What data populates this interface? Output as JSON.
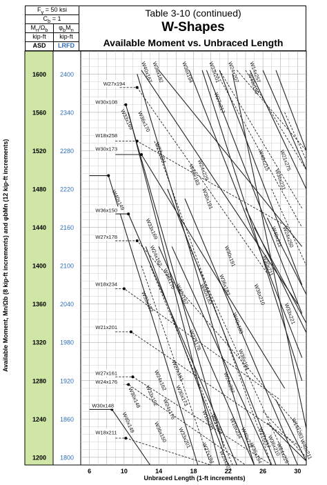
{
  "header": {
    "fy": "F<sub>y</sub> = 50 ksi",
    "cb": "C<sub>b</sub> = 1",
    "asd_sym": "M<sub>n</sub>/Ω<sub>b</sub>",
    "lrfd_sym": "φ<sub>b</sub>M<sub>n</sub>",
    "asd_unit": "kip-ft",
    "lrfd_unit": "kip-ft",
    "asd_label": "ASD",
    "lrfd_label": "LRFD",
    "title_line1": "Table 3-10 (continued)",
    "title_line2": "W-Shapes",
    "title_line3": "Available Moment vs. Unbraced Length"
  },
  "chart_data": {
    "type": "line",
    "xlabel": "Unbraced Length (1-ft increments)",
    "ylabel": "Available Moment, Mn/Ωb (8 kip-ft increments) and φbMn (12 kip-ft increments)",
    "xlim": [
      5,
      31
    ],
    "ylim_asd": [
      1192,
      1624
    ],
    "ylim_lrfd": [
      1788,
      2436
    ],
    "x_ticks": [
      6,
      10,
      14,
      18,
      22,
      26,
      30
    ],
    "asd_ticks": [
      1600,
      1560,
      1520,
      1480,
      1440,
      1400,
      1360,
      1320,
      1280,
      1240,
      1200
    ],
    "lrfd_ticks": [
      2400,
      2340,
      2280,
      2220,
      2160,
      2100,
      2040,
      1980,
      1920,
      1860,
      1800
    ],
    "grid": true,
    "colors": {
      "asd_band": "#cfe6a6",
      "lrfd_text": "#2e6fb5",
      "line": "#222222"
    },
    "shapes": [
      {
        "name": "W27x194",
        "style": "dashed",
        "x": [
          9.5,
          11.5,
          26.5
        ],
        "y": [
          1586,
          1586,
          1392
        ]
      },
      {
        "name": "W30x108",
        "style": "solid",
        "x": [
          9.0,
          10.2,
          21.5
        ],
        "y": [
          1568,
          1568,
          1210
        ]
      },
      {
        "name": "W18x258",
        "style": "dashed",
        "x": [
          9.0,
          11.5,
          29.0
        ],
        "y": [
          1530,
          1530,
          1440
        ]
      },
      {
        "name": "W30x173",
        "style": "solid",
        "x": [
          9.0,
          12.0,
          28.5
        ],
        "y": [
          1516,
          1516,
          1272
        ]
      },
      {
        "name": "W40x149",
        "style": "solid",
        "x": [
          6.0,
          8.2,
          18.5
        ],
        "y": [
          1494,
          1494,
          1192
        ]
      },
      {
        "name": "W36x150",
        "style": "solid",
        "x": [
          9.0,
          10.5,
          23.0
        ],
        "y": [
          1454,
          1454,
          1192
        ]
      },
      {
        "name": "W27x178",
        "style": "dashed",
        "x": [
          9.0,
          11.5,
          30.5
        ],
        "y": [
          1426,
          1426,
          1228
        ]
      },
      {
        "name": "W18x234",
        "style": "dashed",
        "x": [
          9.0,
          10.0,
          28.0
        ],
        "y": [
          1376,
          1376,
          1260
        ]
      },
      {
        "name": "W21x201",
        "style": "dashed",
        "x": [
          9.0,
          10.8,
          30.5
        ],
        "y": [
          1331,
          1331,
          1210
        ]
      },
      {
        "name": "W27x161",
        "style": "dashed",
        "x": [
          9.0,
          11.0,
          27.0
        ],
        "y": [
          1284,
          1284,
          1192
        ]
      },
      {
        "name": "W24x176",
        "style": "dashed",
        "x": [
          9.0,
          10.5,
          24.0
        ],
        "y": [
          1276,
          1276,
          1192
        ]
      },
      {
        "name": "W30x148",
        "style": "solid",
        "x": [
          6.0,
          8.6,
          13.0
        ],
        "y": [
          1250,
          1250,
          1192
        ]
      },
      {
        "name": "W18x211",
        "style": "dashed",
        "x": [
          9.0,
          10.2,
          20.0
        ],
        "y": [
          1220,
          1220,
          1192
        ]
      },
      {
        "name": "W40x167",
        "style": "solid",
        "x": [
          12.0,
          30.0
        ],
        "y": [
          1604,
          1360
        ]
      },
      {
        "name": "W36x182",
        "style": "solid",
        "x": [
          14.0,
          30.5
        ],
        "y": [
          1604,
          1420
        ]
      },
      {
        "name": "W33x169",
        "style": "solid",
        "x": [
          10.5,
          21.0
        ],
        "y": [
          1560,
          1192
        ]
      },
      {
        "name": "W36x170",
        "style": "solid",
        "x": [
          11.5,
          25.0
        ],
        "y": [
          1600,
          1192
        ]
      },
      {
        "name": "W27x194",
        "style": "dashed",
        "x": [
          13.5,
          27.0
        ],
        "y": [
          1530,
          1192
        ]
      },
      {
        "name": "W40x183",
        "style": "solid",
        "x": [
          19.0,
          30.5
        ],
        "y": [
          1604,
          1280
        ]
      },
      {
        "name": "W36x194",
        "style": "solid",
        "x": [
          17.5,
          30.5
        ],
        "y": [
          1604,
          1304
        ]
      },
      {
        "name": "W30x191",
        "style": "solid",
        "x": [
          21.0,
          30.5
        ],
        "y": [
          1604,
          1380
        ]
      },
      {
        "name": "W33x201",
        "style": "solid",
        "x": [
          19.5,
          30.5
        ],
        "y": [
          1604,
          1350
        ]
      },
      {
        "name": "W24x229",
        "style": "dashed",
        "x": [
          21.0,
          30.5
        ],
        "y": [
          1604,
          1460
        ]
      },
      {
        "name": "W27x217",
        "style": "dashed",
        "x": [
          20.5,
          30.5
        ],
        "y": [
          1604,
          1440
        ]
      },
      {
        "name": "W14x257",
        "style": "dashed",
        "x": [
          24.0,
          31.0
        ],
        "y": [
          1604,
          1500
        ]
      },
      {
        "name": "W40x199",
        "style": "solid",
        "x": [
          24.5,
          31.0
        ],
        "y": [
          1604,
          1480
        ]
      },
      {
        "name": "W40x215",
        "style": "solid",
        "x": [
          26.0,
          31.0
        ],
        "y": [
          1604,
          1500
        ]
      },
      {
        "name": "W36x231",
        "style": "solid",
        "x": [
          27.5,
          31.0
        ],
        "y": [
          1604,
          1520
        ]
      },
      {
        "name": "W40x211",
        "style": "solid",
        "x": [
          26.5,
          31.0
        ],
        "y": [
          1450,
          1370
        ]
      },
      {
        "name": "W30x211",
        "style": "solid",
        "x": [
          25.0,
          31.0
        ],
        "y": [
          1440,
          1340
        ]
      },
      {
        "name": "W24x250",
        "style": "dashed",
        "x": [
          27.0,
          31.0
        ],
        "y": [
          1480,
          1400
        ]
      },
      {
        "name": "W21x275",
        "style": "dashed",
        "x": [
          28.5,
          31.0
        ],
        "y": [
          1560,
          1510
        ]
      },
      {
        "name": "W33x221",
        "style": "solid",
        "x": [
          27.5,
          31.0
        ],
        "y": [
          1260,
          1196
        ]
      },
      {
        "name": "W24x207",
        "style": "dashed",
        "x": [
          23.0,
          31.0
        ],
        "y": [
          1604,
          1520
        ]
      },
      {
        "name": "W36x210",
        "style": "solid",
        "x": [
          24.0,
          31.0
        ],
        "y": [
          1460,
          1330
        ]
      },
      {
        "name": "W40x183",
        "style": "solid",
        "x": [
          17.0,
          30.0
        ],
        "y": [
          1470,
          1192
        ]
      },
      {
        "name": "W24x207",
        "style": "dashed",
        "x": [
          17.5,
          29.0
        ],
        "y": [
          1420,
          1192
        ]
      },
      {
        "name": "W40x167",
        "style": "solid",
        "x": [
          15.0,
          27.5
        ],
        "y": [
          1480,
          1192
        ]
      },
      {
        "name": "W36x170",
        "style": "solid",
        "x": [
          15.5,
          27.0
        ],
        "y": [
          1420,
          1192
        ]
      },
      {
        "name": "W30x173",
        "style": "solid",
        "x": [
          14.0,
          25.0
        ],
        "y": [
          1420,
          1192
        ]
      },
      {
        "name": "W33x152",
        "style": "solid",
        "x": [
          12.5,
          22.0
        ],
        "y": [
          1420,
          1192
        ]
      },
      {
        "name": "W24x162",
        "style": "dashed",
        "x": [
          12.0,
          20.0
        ],
        "y": [
          1400,
          1192
        ]
      },
      {
        "name": "W27x178",
        "style": "dashed",
        "x": [
          13.0,
          22.5
        ],
        "y": [
          1400,
          1192
        ]
      },
      {
        "name": "W40x199",
        "style": "solid",
        "x": [
          22.5,
          31.0
        ],
        "y": [
          1600,
          1230
        ]
      },
      {
        "name": "W14x283",
        "style": "dashed",
        "x": [
          26.0,
          31.0
        ],
        "y": [
          1248,
          1200
        ]
      },
      {
        "name": "W40x211",
        "style": "solid",
        "x": [
          26.5,
          31.0
        ],
        "y": [
          1236,
          1196
        ]
      }
    ],
    "labels": [
      {
        "text": "W27x194",
        "x": 7.6,
        "y": 1588,
        "rot": 0
      },
      {
        "text": "W30x108",
        "x": 6.7,
        "y": 1569,
        "rot": 0
      },
      {
        "text": "W18x258",
        "x": 6.7,
        "y": 1534,
        "rot": 0
      },
      {
        "text": "W30x173",
        "x": 6.7,
        "y": 1520,
        "rot": 0
      },
      {
        "text": "W36x150",
        "x": 6.7,
        "y": 1456,
        "rot": 0
      },
      {
        "text": "W27x178",
        "x": 6.7,
        "y": 1428,
        "rot": 0
      },
      {
        "text": "W18x234",
        "x": 6.7,
        "y": 1379,
        "rot": 0
      },
      {
        "text": "W21x201",
        "x": 6.7,
        "y": 1334,
        "rot": 0
      },
      {
        "text": "W27x161",
        "x": 6.7,
        "y": 1286,
        "rot": 0
      },
      {
        "text": "W24x176",
        "x": 6.7,
        "y": 1277,
        "rot": 0
      },
      {
        "text": "W30x148",
        "x": 6.3,
        "y": 1252,
        "rot": 0
      },
      {
        "text": "W18x211",
        "x": 6.7,
        "y": 1224,
        "rot": 0
      },
      {
        "text": "W40x149",
        "x": 8.6,
        "y": 1478,
        "rot": 64
      },
      {
        "text": "W33x169",
        "x": 9.6,
        "y": 1562,
        "rot": 64
      },
      {
        "text": "W36x170",
        "x": 11.6,
        "y": 1560,
        "rot": 66
      },
      {
        "text": "W40x167",
        "x": 12.0,
        "y": 1612,
        "rot": 70
      },
      {
        "text": "W36x182",
        "x": 13.3,
        "y": 1612,
        "rot": 70
      },
      {
        "text": "W27x194",
        "x": 13.6,
        "y": 1528,
        "rot": 70
      },
      {
        "text": "W36x194",
        "x": 16.7,
        "y": 1612,
        "rot": 70
      },
      {
        "text": "W40x183",
        "x": 17.5,
        "y": 1505,
        "rot": 70
      },
      {
        "text": "W24x229",
        "x": 18.5,
        "y": 1510,
        "rot": 70
      },
      {
        "text": "W30x191",
        "x": 19.0,
        "y": 1480,
        "rot": 70
      },
      {
        "text": "W33x201",
        "x": 19.8,
        "y": 1612,
        "rot": 70
      },
      {
        "text": "W27x217",
        "x": 20.4,
        "y": 1580,
        "rot": 70
      },
      {
        "text": "W24x207",
        "x": 22.0,
        "y": 1612,
        "rot": 70
      },
      {
        "text": "W14x257",
        "x": 24.5,
        "y": 1612,
        "rot": 70
      },
      {
        "text": "W40x199",
        "x": 24.3,
        "y": 1600,
        "rot": 70
      },
      {
        "text": "W40x215",
        "x": 25.5,
        "y": 1520,
        "rot": 70
      },
      {
        "text": "W21x275",
        "x": 28.0,
        "y": 1520,
        "rot": 70
      },
      {
        "text": "W36x231",
        "x": 27.4,
        "y": 1500,
        "rot": 70
      },
      {
        "text": "W40x211",
        "x": 27.0,
        "y": 1440,
        "rot": 70
      },
      {
        "text": "W24x250",
        "x": 28.3,
        "y": 1440,
        "rot": 70
      },
      {
        "text": "W30x211",
        "x": 26.0,
        "y": 1410,
        "rot": 70
      },
      {
        "text": "W33x221",
        "x": 28.5,
        "y": 1360,
        "rot": 70
      },
      {
        "text": "W36x210",
        "x": 25.0,
        "y": 1380,
        "rot": 70
      },
      {
        "text": "W36x182",
        "x": 21.0,
        "y": 1390,
        "rot": 70
      },
      {
        "text": "W40x183",
        "x": 22.5,
        "y": 1350,
        "rot": 70
      },
      {
        "text": "W30x191",
        "x": 21.6,
        "y": 1420,
        "rot": 70
      },
      {
        "text": "W24x207",
        "x": 21.5,
        "y": 1288,
        "rot": 70
      },
      {
        "text": "W36x194",
        "x": 23.2,
        "y": 1312,
        "rot": 70
      },
      {
        "text": "W33x169",
        "x": 12.5,
        "y": 1448,
        "rot": 66
      },
      {
        "text": "W24x162",
        "x": 13.0,
        "y": 1420,
        "rot": 66
      },
      {
        "text": "W36x170",
        "x": 14.5,
        "y": 1396,
        "rot": 66
      },
      {
        "text": "W40x167",
        "x": 16.0,
        "y": 1380,
        "rot": 66
      },
      {
        "text": "W33x152",
        "x": 12.0,
        "y": 1372,
        "rot": 66
      },
      {
        "text": "W40x183",
        "x": 18.8,
        "y": 1380,
        "rot": 66
      },
      {
        "text": "W27x178",
        "x": 17.5,
        "y": 1332,
        "rot": 66
      },
      {
        "text": "W24x162",
        "x": 13.5,
        "y": 1290,
        "rot": 66
      },
      {
        "text": "W33x152",
        "x": 12.5,
        "y": 1274,
        "rot": 66
      },
      {
        "text": "W30x173",
        "x": 16.0,
        "y": 1274,
        "rot": 66
      },
      {
        "text": "W27x161",
        "x": 15.5,
        "y": 1300,
        "rot": 66
      },
      {
        "text": "W30x148",
        "x": 10.5,
        "y": 1272,
        "rot": 66
      },
      {
        "text": "W40x149",
        "x": 9.8,
        "y": 1246,
        "rot": 66
      },
      {
        "text": "W36x150",
        "x": 13.5,
        "y": 1236,
        "rot": 66
      },
      {
        "text": "W24x176",
        "x": 14.5,
        "y": 1260,
        "rot": 66
      },
      {
        "text": "W18x211",
        "x": 19.0,
        "y": 1248,
        "rot": 66
      },
      {
        "text": "W21x201",
        "x": 20.0,
        "y": 1244,
        "rot": 66
      },
      {
        "text": "W18x234",
        "x": 22.2,
        "y": 1240,
        "rot": 66
      },
      {
        "text": "W33x201",
        "x": 16.3,
        "y": 1230,
        "rot": 66
      },
      {
        "text": "W27x194",
        "x": 19.0,
        "y": 1214,
        "rot": 66
      },
      {
        "text": "W24x207",
        "x": 21.0,
        "y": 1206,
        "rot": 66
      },
      {
        "text": "W40x211",
        "x": 23.5,
        "y": 1230,
        "rot": 66
      },
      {
        "text": "W36x194",
        "x": 24.5,
        "y": 1214,
        "rot": 66
      },
      {
        "text": "W27x217",
        "x": 25.5,
        "y": 1230,
        "rot": 66
      },
      {
        "text": "W36x210",
        "x": 26.6,
        "y": 1222,
        "rot": 66
      },
      {
        "text": "W24x229",
        "x": 27.6,
        "y": 1214,
        "rot": 66
      },
      {
        "text": "W14x283",
        "x": 29.3,
        "y": 1240,
        "rot": 66
      },
      {
        "text": "W40x211",
        "x": 30.3,
        "y": 1218,
        "rot": 66
      }
    ]
  }
}
